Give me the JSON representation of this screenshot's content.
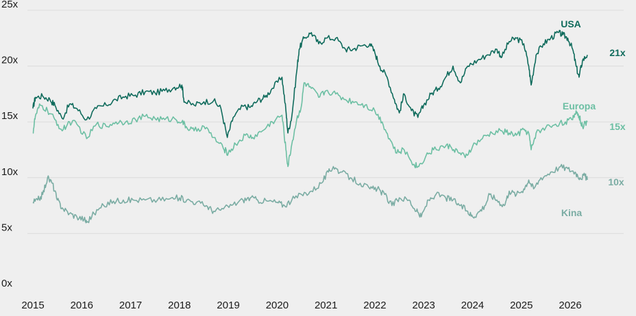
{
  "chart_data": {
    "type": "line",
    "title": "",
    "xlabel": "",
    "ylabel": "",
    "ylim": [
      0,
      25
    ],
    "y_ticks": [
      "0x",
      "5x",
      "10x",
      "15x",
      "20x",
      "25x"
    ],
    "x_ticks": [
      "2015",
      "2016",
      "2017",
      "2018",
      "2019",
      "2020",
      "2021",
      "2022",
      "2023",
      "2024",
      "2025",
      "2026"
    ],
    "grid": "horizontal",
    "legend": "direct labels",
    "series": [
      {
        "name": "USA",
        "color": "#0f6b5c",
        "end_label": "21x",
        "points": [
          [
            2015.0,
            16.2
          ],
          [
            2015.05,
            17.2
          ],
          [
            2015.2,
            17.3
          ],
          [
            2015.35,
            17.0
          ],
          [
            2015.45,
            16.5
          ],
          [
            2015.6,
            15.3
          ],
          [
            2015.75,
            16.6
          ],
          [
            2015.9,
            16.2
          ],
          [
            2016.1,
            15.2
          ],
          [
            2016.3,
            16.2
          ],
          [
            2016.5,
            16.5
          ],
          [
            2016.7,
            17.0
          ],
          [
            2016.9,
            17.3
          ],
          [
            2017.1,
            17.4
          ],
          [
            2017.3,
            17.7
          ],
          [
            2017.5,
            17.6
          ],
          [
            2017.7,
            17.8
          ],
          [
            2017.9,
            18.1
          ],
          [
            2018.05,
            18.3
          ],
          [
            2018.1,
            16.8
          ],
          [
            2018.3,
            16.5
          ],
          [
            2018.5,
            16.8
          ],
          [
            2018.7,
            16.9
          ],
          [
            2018.85,
            16.2
          ],
          [
            2018.98,
            13.6
          ],
          [
            2019.1,
            15.4
          ],
          [
            2019.3,
            16.4
          ],
          [
            2019.45,
            16.3
          ],
          [
            2019.6,
            16.9
          ],
          [
            2019.75,
            17.2
          ],
          [
            2019.9,
            18.0
          ],
          [
            2020.1,
            19.0
          ],
          [
            2020.18,
            16.0
          ],
          [
            2020.22,
            14.0
          ],
          [
            2020.3,
            15.5
          ],
          [
            2020.4,
            19.5
          ],
          [
            2020.45,
            21.5
          ],
          [
            2020.55,
            22.5
          ],
          [
            2020.7,
            23.0
          ],
          [
            2020.85,
            22.0
          ],
          [
            2021.0,
            22.5
          ],
          [
            2021.2,
            22.5
          ],
          [
            2021.4,
            21.5
          ],
          [
            2021.55,
            21.5
          ],
          [
            2021.7,
            21.8
          ],
          [
            2021.9,
            22.0
          ],
          [
            2022.0,
            21.2
          ],
          [
            2022.1,
            20.0
          ],
          [
            2022.25,
            19.0
          ],
          [
            2022.4,
            17.0
          ],
          [
            2022.5,
            15.8
          ],
          [
            2022.6,
            17.5
          ],
          [
            2022.75,
            16.0
          ],
          [
            2022.88,
            15.4
          ],
          [
            2023.0,
            16.5
          ],
          [
            2023.15,
            17.5
          ],
          [
            2023.3,
            18.0
          ],
          [
            2023.45,
            19.0
          ],
          [
            2023.6,
            20.0
          ],
          [
            2023.75,
            18.5
          ],
          [
            2023.9,
            20.0
          ],
          [
            2024.1,
            20.5
          ],
          [
            2024.3,
            21.0
          ],
          [
            2024.5,
            21.5
          ],
          [
            2024.6,
            20.8
          ],
          [
            2024.75,
            22.2
          ],
          [
            2024.9,
            22.5
          ],
          [
            2025.05,
            22.0
          ],
          [
            2025.15,
            20.0
          ],
          [
            2025.2,
            18.3
          ],
          [
            2025.3,
            21.0
          ],
          [
            2025.45,
            22.0
          ],
          [
            2025.6,
            22.5
          ],
          [
            2025.75,
            23.0
          ],
          [
            2025.85,
            22.8
          ],
          [
            2025.95,
            22.5
          ],
          [
            2026.05,
            21.5
          ],
          [
            2026.12,
            20.0
          ],
          [
            2026.18,
            19.0
          ],
          [
            2026.25,
            20.5
          ],
          [
            2026.35,
            21.0
          ]
        ]
      },
      {
        "name": "Europa",
        "color": "#6cbfa3",
        "end_label": "15x",
        "points": [
          [
            2015.0,
            14.0
          ],
          [
            2015.05,
            15.5
          ],
          [
            2015.15,
            16.5
          ],
          [
            2015.3,
            16.0
          ],
          [
            2015.45,
            15.2
          ],
          [
            2015.6,
            14.2
          ],
          [
            2015.75,
            15.0
          ],
          [
            2015.9,
            14.8
          ],
          [
            2016.1,
            13.5
          ],
          [
            2016.3,
            14.8
          ],
          [
            2016.5,
            14.6
          ],
          [
            2016.7,
            15.0
          ],
          [
            2016.9,
            15.0
          ],
          [
            2017.1,
            15.2
          ],
          [
            2017.3,
            15.5
          ],
          [
            2017.5,
            15.3
          ],
          [
            2017.7,
            15.2
          ],
          [
            2017.9,
            15.3
          ],
          [
            2018.05,
            15.0
          ],
          [
            2018.15,
            14.5
          ],
          [
            2018.3,
            14.2
          ],
          [
            2018.5,
            14.6
          ],
          [
            2018.7,
            13.6
          ],
          [
            2018.9,
            12.6
          ],
          [
            2019.0,
            12.2
          ],
          [
            2019.15,
            13.0
          ],
          [
            2019.35,
            13.8
          ],
          [
            2019.5,
            13.6
          ],
          [
            2019.7,
            14.2
          ],
          [
            2019.9,
            15.0
          ],
          [
            2020.1,
            15.6
          ],
          [
            2020.18,
            12.5
          ],
          [
            2020.22,
            11.0
          ],
          [
            2020.3,
            13.0
          ],
          [
            2020.4,
            15.2
          ],
          [
            2020.5,
            16.5
          ],
          [
            2020.55,
            18.5
          ],
          [
            2020.7,
            18.0
          ],
          [
            2020.85,
            17.2
          ],
          [
            2021.0,
            17.8
          ],
          [
            2021.2,
            17.5
          ],
          [
            2021.4,
            17.0
          ],
          [
            2021.6,
            16.8
          ],
          [
            2021.8,
            16.5
          ],
          [
            2022.0,
            16.0
          ],
          [
            2022.15,
            15.0
          ],
          [
            2022.3,
            13.5
          ],
          [
            2022.45,
            12.2
          ],
          [
            2022.6,
            12.5
          ],
          [
            2022.8,
            11.2
          ],
          [
            2022.9,
            11.0
          ],
          [
            2023.05,
            12.0
          ],
          [
            2023.2,
            12.5
          ],
          [
            2023.4,
            12.8
          ],
          [
            2023.55,
            12.8
          ],
          [
            2023.7,
            12.3
          ],
          [
            2023.85,
            11.8
          ],
          [
            2024.0,
            12.8
          ],
          [
            2024.2,
            13.5
          ],
          [
            2024.4,
            14.0
          ],
          [
            2024.6,
            14.2
          ],
          [
            2024.75,
            14.0
          ],
          [
            2024.9,
            13.8
          ],
          [
            2025.05,
            14.3
          ],
          [
            2025.15,
            14.0
          ],
          [
            2025.2,
            12.5
          ],
          [
            2025.3,
            14.0
          ],
          [
            2025.5,
            14.5
          ],
          [
            2025.7,
            14.8
          ],
          [
            2025.9,
            15.0
          ],
          [
            2026.05,
            15.2
          ],
          [
            2026.12,
            16.0
          ],
          [
            2026.18,
            15.5
          ],
          [
            2026.25,
            14.6
          ],
          [
            2026.35,
            15.0
          ]
        ]
      },
      {
        "name": "Kina",
        "color": "#7aaca3",
        "end_label": "10x",
        "points": [
          [
            2015.0,
            7.8
          ],
          [
            2015.1,
            8.0
          ],
          [
            2015.2,
            8.5
          ],
          [
            2015.3,
            10.0
          ],
          [
            2015.4,
            9.5
          ],
          [
            2015.5,
            8.0
          ],
          [
            2015.6,
            7.3
          ],
          [
            2015.75,
            6.8
          ],
          [
            2015.9,
            6.5
          ],
          [
            2016.05,
            6.3
          ],
          [
            2016.1,
            6.0
          ],
          [
            2016.25,
            6.8
          ],
          [
            2016.45,
            7.5
          ],
          [
            2016.65,
            7.9
          ],
          [
            2016.85,
            8.0
          ],
          [
            2017.05,
            8.0
          ],
          [
            2017.3,
            8.0
          ],
          [
            2017.55,
            8.0
          ],
          [
            2017.8,
            8.1
          ],
          [
            2018.0,
            8.2
          ],
          [
            2018.15,
            8.0
          ],
          [
            2018.35,
            7.8
          ],
          [
            2018.55,
            7.5
          ],
          [
            2018.7,
            7.0
          ],
          [
            2018.9,
            7.2
          ],
          [
            2019.1,
            7.6
          ],
          [
            2019.3,
            8.0
          ],
          [
            2019.45,
            8.2
          ],
          [
            2019.6,
            8.0
          ],
          [
            2019.8,
            7.9
          ],
          [
            2020.0,
            7.8
          ],
          [
            2020.15,
            7.5
          ],
          [
            2020.3,
            8.0
          ],
          [
            2020.5,
            8.5
          ],
          [
            2020.7,
            8.8
          ],
          [
            2020.9,
            9.5
          ],
          [
            2021.05,
            10.5
          ],
          [
            2021.15,
            11.0
          ],
          [
            2021.3,
            10.5
          ],
          [
            2021.5,
            10.0
          ],
          [
            2021.7,
            9.5
          ],
          [
            2021.9,
            9.0
          ],
          [
            2022.05,
            9.0
          ],
          [
            2022.2,
            8.5
          ],
          [
            2022.35,
            7.5
          ],
          [
            2022.5,
            8.2
          ],
          [
            2022.7,
            8.0
          ],
          [
            2022.85,
            7.0
          ],
          [
            2022.95,
            6.5
          ],
          [
            2023.1,
            8.0
          ],
          [
            2023.25,
            8.5
          ],
          [
            2023.45,
            8.2
          ],
          [
            2023.6,
            8.0
          ],
          [
            2023.75,
            7.5
          ],
          [
            2023.9,
            7.0
          ],
          [
            2024.0,
            6.5
          ],
          [
            2024.1,
            6.8
          ],
          [
            2024.25,
            7.5
          ],
          [
            2024.35,
            8.5
          ],
          [
            2024.5,
            8.0
          ],
          [
            2024.65,
            7.5
          ],
          [
            2024.75,
            8.8
          ],
          [
            2024.9,
            8.5
          ],
          [
            2025.05,
            9.0
          ],
          [
            2025.15,
            9.8
          ],
          [
            2025.25,
            9.0
          ],
          [
            2025.4,
            10.0
          ],
          [
            2025.6,
            10.5
          ],
          [
            2025.8,
            11.0
          ],
          [
            2025.95,
            10.8
          ],
          [
            2026.1,
            10.5
          ],
          [
            2026.2,
            10.0
          ],
          [
            2026.3,
            10.2
          ],
          [
            2026.35,
            9.8
          ]
        ]
      }
    ]
  }
}
